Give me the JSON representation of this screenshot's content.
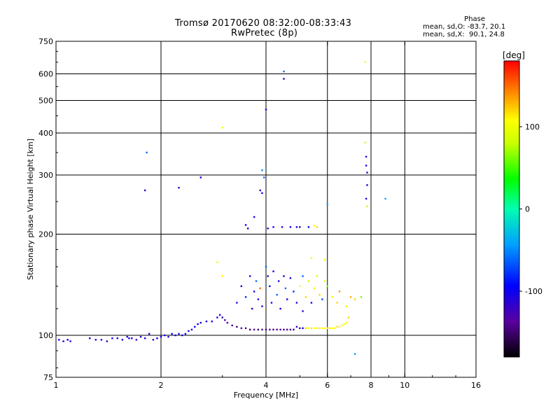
{
  "header": {
    "title_line1": "Tromsø 20170620 08:32:00-08:33:43",
    "title_line2": "RwPretec (8p)"
  },
  "phase_stats": {
    "heading": "Phase",
    "line_o": "mean, sd,O: -83.7, 20.1",
    "line_x": "mean, sd,X:  90.1, 24.8"
  },
  "colorbar": {
    "unit_label": "[deg]",
    "ticks": [
      {
        "value": 100,
        "label": "100"
      },
      {
        "value": 0,
        "label": "0"
      },
      {
        "value": -100,
        "label": "-100"
      }
    ],
    "range": [
      -180,
      180
    ]
  },
  "chart_data": {
    "type": "scatter",
    "title": "Tromsø 20170620 08:32:00-08:33:43",
    "subtitle": "RwPretec (8p)",
    "xlabel": "Frequency [MHz]",
    "ylabel": "Stationary phase Virtual Height [km]",
    "x_scale": "log",
    "y_scale": "log",
    "xlim": [
      1,
      16
    ],
    "ylim": [
      75,
      750
    ],
    "grid": true,
    "x_ticks": [
      {
        "value": 1,
        "label": "1"
      },
      {
        "value": 2,
        "label": "2"
      },
      {
        "value": 4,
        "label": "4"
      },
      {
        "value": 6,
        "label": "6"
      },
      {
        "value": 8,
        "label": "8"
      },
      {
        "value": 10,
        "label": "10"
      },
      {
        "value": 16,
        "label": "16"
      }
    ],
    "y_ticks": [
      {
        "value": 75,
        "label": "75"
      },
      {
        "value": 100,
        "label": "100"
      },
      {
        "value": 200,
        "label": "200"
      },
      {
        "value": 300,
        "label": "300"
      },
      {
        "value": 400,
        "label": "400"
      },
      {
        "value": 500,
        "label": "500"
      },
      {
        "value": 600,
        "label": "600"
      },
      {
        "value": 750,
        "label": "750"
      }
    ],
    "x_grid": [
      2,
      4,
      6,
      8,
      10
    ],
    "y_grid": [
      100,
      200,
      300,
      400,
      500,
      600
    ],
    "color_scale": "phase in degrees, -180 (black) to 180 (red)",
    "points": [
      [
        1.02,
        97,
        -110
      ],
      [
        1.05,
        96,
        -105
      ],
      [
        1.08,
        97,
        -100
      ],
      [
        1.1,
        96,
        -115
      ],
      [
        1.25,
        98,
        -100
      ],
      [
        1.3,
        97,
        -110
      ],
      [
        1.35,
        97,
        -105
      ],
      [
        1.4,
        96,
        -120
      ],
      [
        1.45,
        98,
        -100
      ],
      [
        1.5,
        98,
        -110
      ],
      [
        1.55,
        97,
        -105
      ],
      [
        1.6,
        99,
        -115
      ],
      [
        1.62,
        98,
        -100
      ],
      [
        1.65,
        98,
        -110
      ],
      [
        1.7,
        97,
        -120
      ],
      [
        1.75,
        99,
        -105
      ],
      [
        1.8,
        98,
        -110
      ],
      [
        1.85,
        101,
        -95
      ],
      [
        1.9,
        97,
        -110
      ],
      [
        1.95,
        98,
        -100
      ],
      [
        2.0,
        99,
        -108
      ],
      [
        2.05,
        100,
        -105
      ],
      [
        2.1,
        99,
        -110
      ],
      [
        2.15,
        101,
        -95
      ],
      [
        2.2,
        100,
        -100
      ],
      [
        2.25,
        101,
        -110
      ],
      [
        2.3,
        100,
        -105
      ],
      [
        2.35,
        101,
        -95
      ],
      [
        2.4,
        103,
        -100
      ],
      [
        2.45,
        104,
        -110
      ],
      [
        2.5,
        106,
        -95
      ],
      [
        2.55,
        108,
        -100
      ],
      [
        2.6,
        109,
        -110
      ],
      [
        2.7,
        110,
        -105
      ],
      [
        2.8,
        110,
        -100
      ],
      [
        2.9,
        113,
        -115
      ],
      [
        2.95,
        115,
        -110
      ],
      [
        3.0,
        113,
        -120
      ],
      [
        3.05,
        111,
        -130
      ],
      [
        3.1,
        109,
        -140
      ],
      [
        3.2,
        107,
        -145
      ],
      [
        3.3,
        106,
        -150
      ],
      [
        3.4,
        105,
        -140
      ],
      [
        3.5,
        105,
        -145
      ],
      [
        3.6,
        104,
        -150
      ],
      [
        3.7,
        104,
        -145
      ],
      [
        3.8,
        104,
        -150
      ],
      [
        3.9,
        104,
        -140
      ],
      [
        4.0,
        104,
        -145
      ],
      [
        4.1,
        104,
        -140
      ],
      [
        4.2,
        104,
        -150
      ],
      [
        4.3,
        104,
        -145
      ],
      [
        4.4,
        104,
        -140
      ],
      [
        4.5,
        104,
        -150
      ],
      [
        4.6,
        104,
        -145
      ],
      [
        4.7,
        104,
        -140
      ],
      [
        4.8,
        104,
        -150
      ],
      [
        4.9,
        106,
        -120
      ],
      [
        5.0,
        105,
        -150
      ],
      [
        5.1,
        105,
        -90
      ],
      [
        5.2,
        105,
        120
      ],
      [
        5.3,
        105,
        110
      ],
      [
        5.4,
        105,
        115
      ],
      [
        5.5,
        105,
        105
      ],
      [
        5.6,
        105,
        110
      ],
      [
        5.7,
        105,
        115
      ],
      [
        5.8,
        105,
        105
      ],
      [
        5.9,
        105,
        110
      ],
      [
        6.0,
        105,
        100
      ],
      [
        6.1,
        105,
        115
      ],
      [
        6.2,
        105,
        110
      ],
      [
        6.3,
        105,
        105
      ],
      [
        6.4,
        106,
        115
      ],
      [
        6.5,
        106,
        110
      ],
      [
        6.6,
        107,
        105
      ],
      [
        6.7,
        108,
        100
      ],
      [
        6.8,
        109,
        110
      ],
      [
        6.9,
        113,
        120
      ],
      [
        1.8,
        270,
        -110
      ],
      [
        1.82,
        350,
        -60
      ],
      [
        2.25,
        275,
        -110
      ],
      [
        2.6,
        295,
        -100
      ],
      [
        3.0,
        415,
        100
      ],
      [
        3.9,
        310,
        -50
      ],
      [
        3.95,
        295,
        -60
      ],
      [
        4.0,
        470,
        -110
      ],
      [
        4.5,
        610,
        -60
      ],
      [
        4.5,
        580,
        -110
      ],
      [
        3.85,
        270,
        -110
      ],
      [
        3.9,
        265,
        -110
      ],
      [
        3.5,
        213,
        -100
      ],
      [
        3.55,
        208,
        -110
      ],
      [
        3.7,
        225,
        -100
      ],
      [
        4.05,
        208,
        -110
      ],
      [
        4.2,
        210,
        -105
      ],
      [
        4.45,
        210,
        -110
      ],
      [
        4.7,
        210,
        -105
      ],
      [
        4.9,
        210,
        -100
      ],
      [
        5.0,
        210,
        -110
      ],
      [
        5.3,
        210,
        -100
      ],
      [
        5.5,
        212,
        110
      ],
      [
        5.6,
        210,
        120
      ],
      [
        6.0,
        245,
        -40
      ],
      [
        7.7,
        650,
        100
      ],
      [
        7.7,
        375,
        90
      ],
      [
        7.75,
        340,
        -110
      ],
      [
        7.75,
        320,
        -105
      ],
      [
        7.8,
        305,
        -110
      ],
      [
        7.8,
        280,
        -110
      ],
      [
        7.75,
        255,
        -110
      ],
      [
        7.8,
        242,
        80
      ],
      [
        8.8,
        255,
        -40
      ],
      [
        7.2,
        88,
        -40
      ],
      [
        2.9,
        165,
        100
      ],
      [
        3.0,
        150,
        110
      ],
      [
        3.3,
        125,
        -110
      ],
      [
        3.4,
        140,
        -100
      ],
      [
        3.5,
        130,
        -80
      ],
      [
        3.6,
        150,
        -110
      ],
      [
        3.65,
        120,
        -105
      ],
      [
        3.7,
        135,
        -110
      ],
      [
        3.75,
        145,
        -60
      ],
      [
        3.8,
        128,
        -100
      ],
      [
        3.85,
        138,
        150
      ],
      [
        3.9,
        122,
        -110
      ],
      [
        4.0,
        160,
        -60
      ],
      [
        4.05,
        150,
        -110
      ],
      [
        4.1,
        140,
        -90
      ],
      [
        4.15,
        125,
        -110
      ],
      [
        4.2,
        155,
        -100
      ],
      [
        4.3,
        132,
        -60
      ],
      [
        4.35,
        145,
        -110
      ],
      [
        4.4,
        120,
        -100
      ],
      [
        4.5,
        150,
        -110
      ],
      [
        4.55,
        138,
        -60
      ],
      [
        4.6,
        128,
        -105
      ],
      [
        4.7,
        148,
        -110
      ],
      [
        4.8,
        135,
        -80
      ],
      [
        4.9,
        125,
        -110
      ],
      [
        5.0,
        140,
        110
      ],
      [
        5.1,
        150,
        -60
      ],
      [
        5.2,
        130,
        120
      ],
      [
        5.3,
        145,
        80
      ],
      [
        5.4,
        125,
        -110
      ],
      [
        5.5,
        138,
        100
      ],
      [
        5.6,
        150,
        90
      ],
      [
        5.7,
        132,
        120
      ],
      [
        5.8,
        128,
        -70
      ],
      [
        5.9,
        145,
        100
      ],
      [
        6.0,
        140,
        60
      ],
      [
        6.2,
        130,
        110
      ],
      [
        6.4,
        125,
        120
      ],
      [
        6.5,
        135,
        140
      ],
      [
        6.8,
        122,
        100
      ],
      [
        7.0,
        130,
        130
      ],
      [
        7.2,
        128,
        120
      ],
      [
        7.5,
        130,
        60
      ],
      [
        5.4,
        170,
        110
      ],
      [
        5.9,
        168,
        100
      ],
      [
        5.1,
        118,
        -110
      ]
    ]
  }
}
